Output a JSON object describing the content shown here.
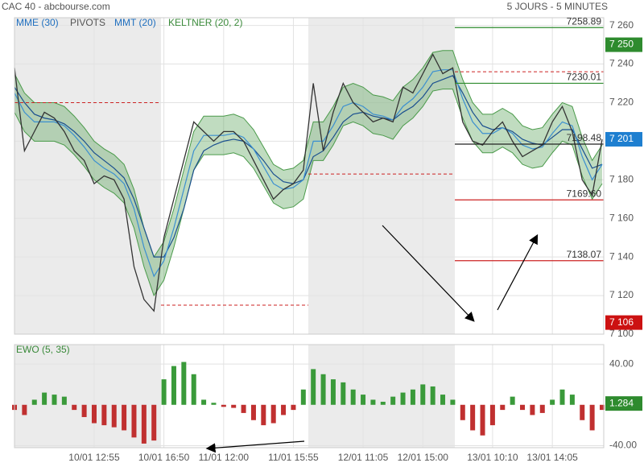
{
  "chart_data": [
    {
      "type": "line",
      "title": "CAC 40 - abcbourse.com",
      "subtitle": "5 JOURS - 5 MINUTES",
      "xlim": [
        0,
        59
      ],
      "xticks": [
        {
          "value": 8,
          "label": "10/01 12:55"
        },
        {
          "value": 15,
          "label": "10/01 16:50"
        },
        {
          "value": 21,
          "label": "11/01 12:00"
        },
        {
          "value": 28,
          "label": "11/01 15:55"
        },
        {
          "value": 35,
          "label": "12/01 11:05"
        },
        {
          "value": 41,
          "label": "12/01 15:00"
        },
        {
          "value": 48,
          "label": "13/01 10:10"
        },
        {
          "value": 54,
          "label": "13/01 14:05"
        }
      ],
      "ylim": [
        7100,
        7264
      ],
      "yticks": [
        {
          "value": 7260,
          "label": "7 260"
        },
        {
          "value": 7240,
          "label": "7 240"
        },
        {
          "value": 7220,
          "label": "7 220"
        },
        {
          "value": 7200,
          "label": "7 200"
        },
        {
          "value": 7180,
          "label": "7 180"
        },
        {
          "value": 7160,
          "label": "7 160"
        },
        {
          "value": 7140,
          "label": "7 140"
        },
        {
          "value": 7120,
          "label": "7 120"
        },
        {
          "value": 7100,
          "label": "7 100"
        }
      ],
      "grid": true,
      "price": {
        "color": "#333333",
        "values": [
          7238,
          7195,
          7205,
          7215,
          7212,
          7205,
          7195,
          7190,
          7178,
          7182,
          7180,
          7170,
          7135,
          7118,
          7112,
          7150,
          7170,
          7190,
          7210,
          7205,
          7200,
          7205,
          7205,
          7200,
          7190,
          7180,
          7170,
          7175,
          7178,
          7185,
          7230,
          7195,
          7215,
          7230,
          7220,
          7215,
          7210,
          7212,
          7210,
          7228,
          7225,
          7235,
          7245,
          7235,
          7238,
          7210,
          7200,
          7198,
          7205,
          7210,
          7200,
          7192,
          7195,
          7198,
          7210,
          7218,
          7205,
          7180,
          7172,
          7201
        ]
      },
      "series": [
        {
          "name": "MME (30)",
          "color": "#1a4f8f",
          "values": [
            7228,
            7220,
            7214,
            7212,
            7211,
            7209,
            7205,
            7200,
            7194,
            7190,
            7186,
            7181,
            7170,
            7155,
            7140,
            7140,
            7150,
            7165,
            7185,
            7195,
            7198,
            7200,
            7201,
            7200,
            7196,
            7190,
            7183,
            7179,
            7178,
            7180,
            7192,
            7195,
            7202,
            7210,
            7214,
            7215,
            7213,
            7212,
            7211,
            7215,
            7218,
            7223,
            7230,
            7232,
            7234,
            7225,
            7215,
            7208,
            7206,
            7207,
            7205,
            7201,
            7199,
            7198,
            7202,
            7206,
            7206,
            7196,
            7186,
            7188
          ]
        },
        {
          "name": "MMT (20)",
          "color": "#3b8fd0",
          "values": [
            7225,
            7215,
            7210,
            7210,
            7210,
            7208,
            7203,
            7197,
            7190,
            7186,
            7183,
            7178,
            7165,
            7145,
            7130,
            7138,
            7155,
            7175,
            7195,
            7203,
            7203,
            7203,
            7204,
            7202,
            7196,
            7187,
            7178,
            7175,
            7176,
            7180,
            7200,
            7200,
            7208,
            7218,
            7220,
            7218,
            7214,
            7213,
            7211,
            7218,
            7222,
            7228,
            7236,
            7237,
            7237,
            7222,
            7210,
            7204,
            7204,
            7207,
            7204,
            7198,
            7196,
            7197,
            7204,
            7210,
            7208,
            7192,
            7180,
            7188
          ]
        }
      ],
      "keltner": {
        "name": "KELTNER (20, 2)",
        "color": "#4a9a4a",
        "upper": [
          7235,
          7225,
          7220,
          7220,
          7220,
          7218,
          7213,
          7207,
          7200,
          7196,
          7193,
          7188,
          7175,
          7155,
          7140,
          7148,
          7165,
          7185,
          7205,
          7213,
          7213,
          7213,
          7214,
          7212,
          7206,
          7197,
          7188,
          7185,
          7186,
          7190,
          7210,
          7210,
          7218,
          7228,
          7230,
          7228,
          7224,
          7223,
          7221,
          7228,
          7232,
          7238,
          7246,
          7247,
          7247,
          7232,
          7220,
          7214,
          7214,
          7217,
          7214,
          7208,
          7206,
          7207,
          7214,
          7220,
          7218,
          7202,
          7190,
          7198
        ],
        "lower": [
          7215,
          7205,
          7200,
          7200,
          7200,
          7198,
          7193,
          7187,
          7180,
          7176,
          7173,
          7168,
          7155,
          7135,
          7120,
          7128,
          7145,
          7165,
          7185,
          7193,
          7193,
          7193,
          7194,
          7192,
          7186,
          7177,
          7168,
          7165,
          7166,
          7170,
          7190,
          7190,
          7198,
          7208,
          7210,
          7208,
          7204,
          7203,
          7201,
          7208,
          7212,
          7218,
          7226,
          7227,
          7227,
          7212,
          7200,
          7194,
          7194,
          7197,
          7194,
          7188,
          7186,
          7187,
          7194,
          7200,
          7198,
          7182,
          7170,
          7178
        ]
      },
      "pivots": {
        "name": "PIVOTS",
        "previous": [
          7220,
          7115,
          7183,
          7236
        ],
        "levels": [
          {
            "value": 7258.89,
            "color": "#2e8b2e"
          },
          {
            "value": 7230.01,
            "color": "#2e8b2e"
          },
          {
            "value": 7198.48,
            "color": "#222222"
          },
          {
            "value": 7169.6,
            "label": "7169.60",
            "color": "#cc2222"
          },
          {
            "value": 7138.07,
            "color": "#cc2222"
          }
        ]
      },
      "badges": [
        {
          "value": 7250,
          "label": "7 250",
          "color": "#2e8b2e"
        },
        {
          "value": 7201,
          "label": "7 201",
          "color": "#1e7fd0"
        },
        {
          "value": 7106,
          "label": "7 106",
          "color": "#cc1111"
        }
      ]
    },
    {
      "type": "bar",
      "title": "EWO (5, 35)",
      "values": [
        -5,
        -10,
        5,
        12,
        10,
        8,
        -5,
        -12,
        -18,
        -20,
        -22,
        -25,
        -32,
        -38,
        -35,
        25,
        38,
        42,
        30,
        5,
        2,
        -2,
        -3,
        -8,
        -15,
        -20,
        -18,
        -10,
        -5,
        15,
        35,
        30,
        25,
        22,
        15,
        10,
        5,
        3,
        8,
        12,
        15,
        20,
        18,
        10,
        5,
        -15,
        -25,
        -30,
        -20,
        -5,
        8,
        -5,
        -10,
        -8,
        5,
        15,
        10,
        -15,
        -25,
        -5
      ],
      "colors": {
        "positive": "#3a9a3a",
        "negative": "#c03030"
      },
      "ylim": [
        -42,
        59
      ],
      "yticks": [
        {
          "value": 40,
          "label": "40.00"
        },
        {
          "value": -40,
          "label": "-40.00"
        }
      ],
      "badge": {
        "value": 1.284,
        "color": "#2e8b2e"
      }
    }
  ]
}
